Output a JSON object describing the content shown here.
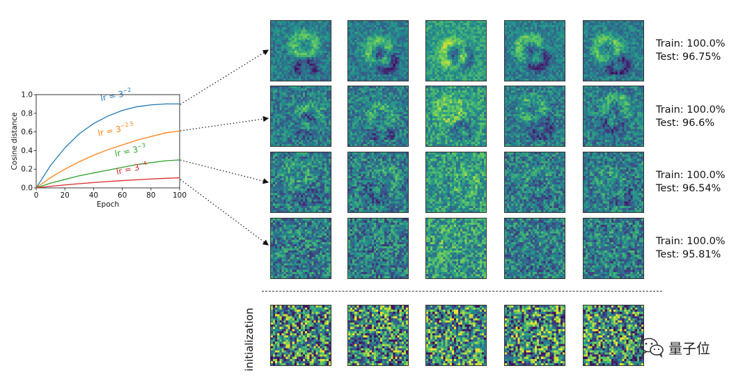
{
  "chart_data": {
    "type": "line",
    "title": "",
    "xlabel": "Epoch",
    "ylabel": "Cosine distance",
    "xlim": [
      0,
      100
    ],
    "ylim": [
      0,
      1.0
    ],
    "xticks": [
      "0",
      "20",
      "40",
      "60",
      "80",
      "100"
    ],
    "yticks": [
      "0.0",
      "0.2",
      "0.4",
      "0.6",
      "0.8",
      "1.0"
    ],
    "grid": false,
    "x": [
      0,
      10,
      20,
      30,
      40,
      50,
      60,
      70,
      80,
      90,
      100
    ],
    "series": [
      {
        "name": "lr = 3^-2",
        "label_base": "lr = 3",
        "label_exp": "−2",
        "color": "#1f77b4",
        "values": [
          0.0,
          0.24,
          0.43,
          0.58,
          0.69,
          0.77,
          0.83,
          0.87,
          0.89,
          0.9,
          0.9
        ]
      },
      {
        "name": "lr = 3^-2.5",
        "label_base": "lr = 3",
        "label_exp": "−2.5",
        "color": "#ff7f0e",
        "values": [
          0.0,
          0.11,
          0.2,
          0.28,
          0.35,
          0.41,
          0.46,
          0.51,
          0.55,
          0.59,
          0.61
        ]
      },
      {
        "name": "lr = 3^-3",
        "label_base": "lr = 3",
        "label_exp": "−3",
        "color": "#2ca02c",
        "values": [
          0.0,
          0.05,
          0.09,
          0.13,
          0.16,
          0.19,
          0.22,
          0.25,
          0.27,
          0.29,
          0.3
        ]
      },
      {
        "name": "lr = 3^-4",
        "label_base": "lr = 3",
        "label_exp": "−4",
        "color": "#d62728",
        "values": [
          0.0,
          0.017,
          0.032,
          0.045,
          0.057,
          0.068,
          0.078,
          0.087,
          0.095,
          0.102,
          0.108
        ]
      }
    ]
  },
  "rows": [
    {
      "train": "Train: 100.0%",
      "test": "Test: 96.75%"
    },
    {
      "train": "Train: 100.0%",
      "test": "Test: 96.6%"
    },
    {
      "train": "Train: 100.0%",
      "test": "Test: 96.54%"
    },
    {
      "train": "Train: 100.0%",
      "test": "Test: 95.81%"
    }
  ],
  "init_label": "initialization",
  "watermark": {
    "icon": "wechat-icon",
    "text": "量子位"
  },
  "colormap": [
    "#440154",
    "#3b528b",
    "#21918c",
    "#5ec962",
    "#fde725"
  ]
}
